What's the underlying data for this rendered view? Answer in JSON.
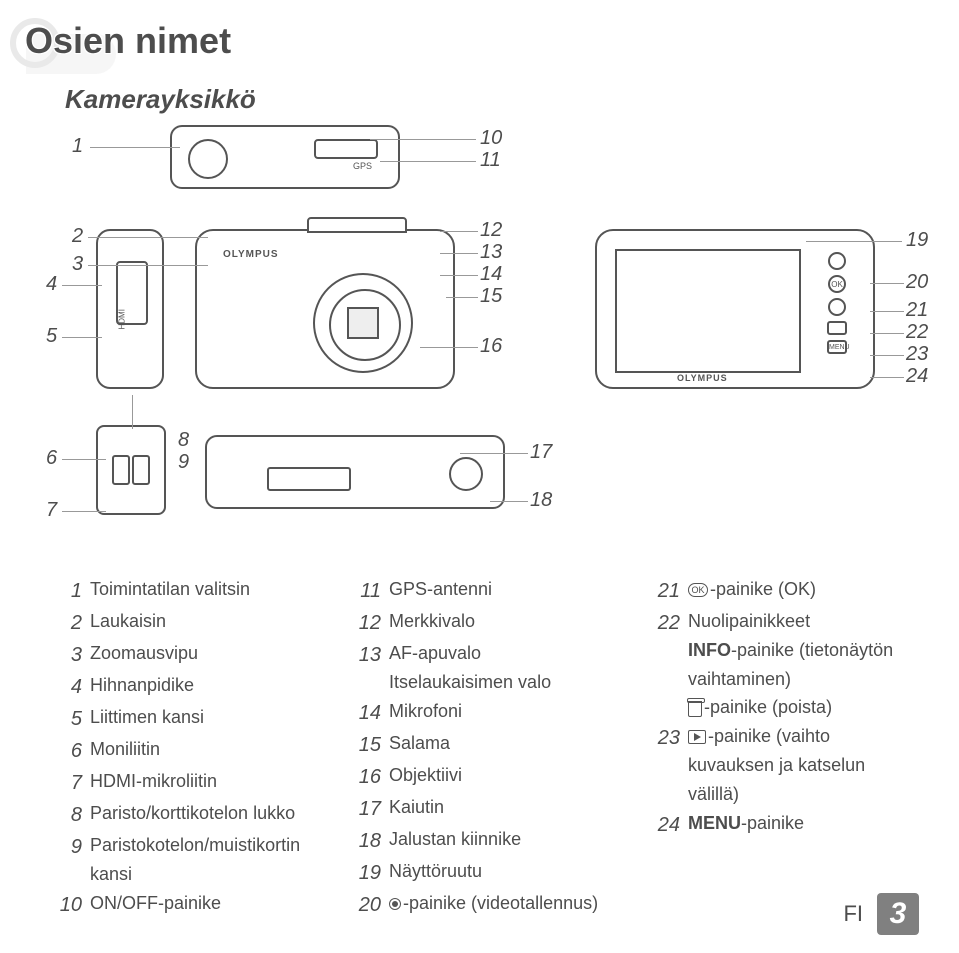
{
  "title": "Osien nimet",
  "subtitle": "Kamerayksikkö",
  "diagram_numbers": {
    "n1": "1",
    "n2": "2",
    "n3": "3",
    "n4": "4",
    "n5": "5",
    "n6": "6",
    "n7": "7",
    "n8": "8",
    "n9": "9",
    "n10": "10",
    "n11": "11",
    "n12": "12",
    "n13": "13",
    "n14": "14",
    "n15": "15",
    "n16": "16",
    "n17": "17",
    "n18": "18",
    "n19": "19",
    "n20": "20",
    "n21": "21",
    "n22": "22",
    "n23": "23",
    "n24": "24"
  },
  "brand": "OLYMPUS",
  "gps": "GPS",
  "hdmi": "HDMI",
  "ok": "OK",
  "menu": "MENU",
  "legend_col1": [
    {
      "n": "1",
      "t": "Toimintatilan valitsin"
    },
    {
      "n": "2",
      "t": "Laukaisin"
    },
    {
      "n": "3",
      "t": "Zoomausvipu"
    },
    {
      "n": "4",
      "t": "Hihnanpidike"
    },
    {
      "n": "5",
      "t": "Liittimen kansi"
    },
    {
      "n": "6",
      "t": "Moniliitin"
    },
    {
      "n": "7",
      "t": "HDMI-mikroliitin"
    },
    {
      "n": "8",
      "t": "Paristo/korttikotelon lukko"
    },
    {
      "n": "9",
      "t": "Paristokotelon/muistikortin kansi"
    },
    {
      "n": "10",
      "t": "ON/OFF-painike"
    }
  ],
  "legend_col2": [
    {
      "n": "11",
      "t": "GPS-antenni"
    },
    {
      "n": "12",
      "t": "Merkkivalo"
    },
    {
      "n": "13",
      "t": "AF-apuvalo",
      "sub": "Itselaukaisimen valo"
    },
    {
      "n": "14",
      "t": "Mikrofoni"
    },
    {
      "n": "15",
      "t": "Salama"
    },
    {
      "n": "16",
      "t": "Objektiivi"
    },
    {
      "n": "17",
      "t": "Kaiutin"
    },
    {
      "n": "18",
      "t": "Jalustan kiinnike"
    },
    {
      "n": "19",
      "t": "Näyttöruutu"
    },
    {
      "n": "20",
      "t": "-painike (videotallennus)",
      "icon": "rec"
    }
  ],
  "legend_col3": [
    {
      "n": "21",
      "t": "-painike (OK)",
      "icon": "ok"
    },
    {
      "n": "22",
      "t": "Nuolipainikkeet",
      "subs": [
        {
          "pre": "INFO",
          "txt": "-painike (tietonäytön vaihtaminen)"
        },
        {
          "icon": "trash",
          "txt": "-painike (poista)"
        }
      ]
    },
    {
      "n": "23",
      "t": "-painike (vaihto kuvauksen ja katselun välillä)",
      "icon": "play"
    },
    {
      "n": "24",
      "t": "-painike",
      "pre": "MENU"
    }
  ],
  "footer": {
    "lang": "FI",
    "page": "3"
  }
}
